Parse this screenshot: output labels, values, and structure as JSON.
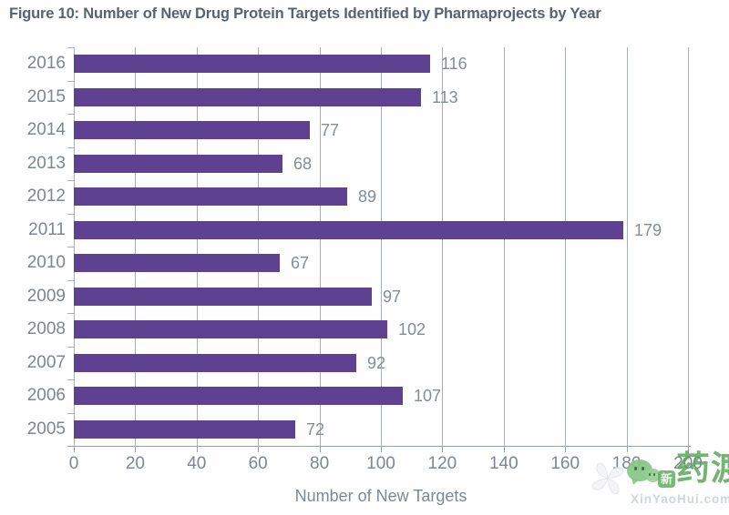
{
  "title": "Figure 10: Number of New Drug Protein Targets Identified by Pharmaprojects by Year",
  "chart_data": {
    "type": "bar",
    "orientation": "horizontal",
    "categories": [
      "2016",
      "2015",
      "2014",
      "2013",
      "2012",
      "2011",
      "2010",
      "2009",
      "2008",
      "2007",
      "2006",
      "2005"
    ],
    "values": [
      116,
      113,
      77,
      68,
      89,
      179,
      67,
      97,
      102,
      92,
      107,
      72
    ],
    "title": "Figure 10: Number of New Drug Protein Targets Identified by Pharmaprojects by Year",
    "xlabel": "Number of New Targets",
    "ylabel": "",
    "xlim": [
      0,
      200
    ],
    "xticks": [
      0,
      20,
      40,
      60,
      80,
      100,
      120,
      140,
      160,
      180,
      200
    ],
    "grid": "vertical-gridlines-on",
    "legend": "none",
    "bar_color": "#5e4191",
    "grid_color": "#a9aeb4",
    "axis_label_color": "#7d8692",
    "value_label_color": "#848d96",
    "title_color": "#596273"
  },
  "watermark": {
    "brand_text": "药渡",
    "badge_text": "新",
    "url_text": "XinYaoHui.com",
    "green": "#54a454",
    "icons": [
      "pinwheel-icon",
      "wechat-bubble-icon"
    ]
  }
}
